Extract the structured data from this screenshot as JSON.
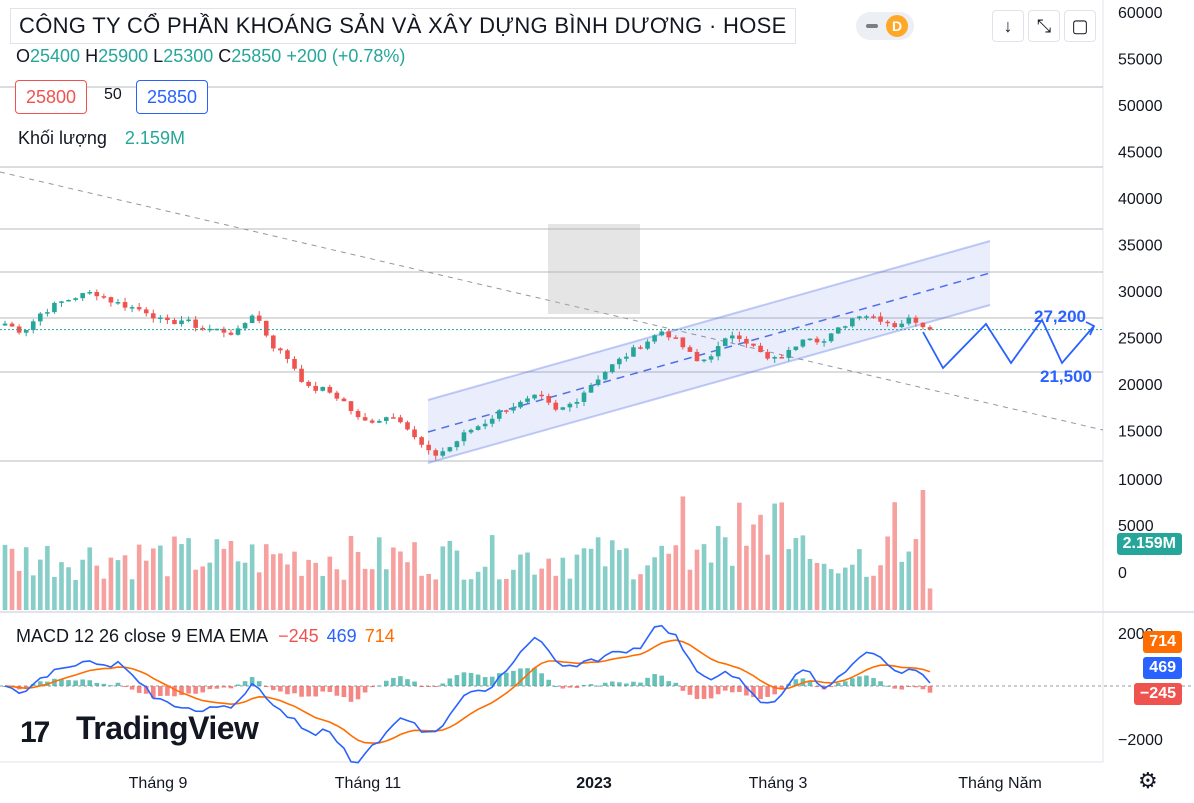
{
  "header": {
    "title": "CÔNG TY CỔ PHẦN KHOÁNG SẢN VÀ XÂY DỰNG BÌNH DƯƠNG · HOSE",
    "interval": "D",
    "ohlc": {
      "o_label": "O",
      "o": "25400",
      "h_label": "H",
      "h": "25900",
      "l_label": "L",
      "l": "25300",
      "c_label": "C",
      "c": "25850",
      "change": "+200 (+0.78%)"
    },
    "bid": "25800",
    "spread": "50",
    "ask": "25850",
    "volume_label": "Khối lượng",
    "volume_value": "2.159M"
  },
  "toolbar": {
    "down_icon": "arrow-down-icon",
    "expand_icon": "expand-icon",
    "window_icon": "window-icon"
  },
  "macd_legend": {
    "label": "MACD 12 26 close 9 EMA EMA",
    "hist": "−245",
    "macd": "469",
    "signal": "714"
  },
  "branding": {
    "logo_text": "TradingView"
  },
  "colors": {
    "up": "#26a69a",
    "down": "#ef5350",
    "macd": "#2962ff",
    "signal": "#ff6d00",
    "channel": "#4f6fe8"
  },
  "chart_data": [
    {
      "type": "candlestick",
      "ylim": [
        0,
        60000
      ],
      "price_ticks": [
        "60000",
        "55000",
        "50000",
        "45000",
        "40000",
        "35000",
        "30000",
        "25000",
        "20000",
        "15000",
        "10000",
        "5000",
        "0"
      ],
      "x_labels": [
        "Tháng 9",
        "Tháng 11",
        "2023",
        "Tháng 3",
        "Tháng Năm"
      ],
      "close_path": [
        26500,
        25600,
        27600,
        28700,
        29400,
        29900,
        28900,
        28300,
        27800,
        26500,
        26900,
        26000,
        25800,
        25400,
        27800,
        24200,
        22600,
        19500,
        19400,
        18200,
        15900,
        16200,
        16800,
        14200,
        12200,
        13200,
        14900,
        15900,
        17300,
        17900,
        18700,
        17000,
        18100,
        20100,
        21800,
        23200,
        24500,
        25800,
        24200,
        22200,
        23700,
        25600,
        24100,
        22400,
        23300,
        25400,
        24500,
        26100,
        27600,
        27200,
        26300,
        27100,
        25850
      ],
      "annotations": [
        {
          "text": "27,200",
          "price": 27200
        },
        {
          "text": "21,500",
          "price": 21500
        }
      ]
    },
    {
      "type": "bar",
      "name": "Khối lượng",
      "last_value": "2.159M",
      "ylim": [
        0,
        15000
      ],
      "ticks": [
        "10000",
        "5000",
        "0"
      ]
    },
    {
      "type": "line",
      "name": "MACD 12 26 close 9 EMA EMA",
      "ylim": [
        -2200,
        2200
      ],
      "ticks": [
        "2000",
        "−2000"
      ],
      "last_values": {
        "signal": "714",
        "macd": "469",
        "hist": "−245"
      }
    }
  ]
}
